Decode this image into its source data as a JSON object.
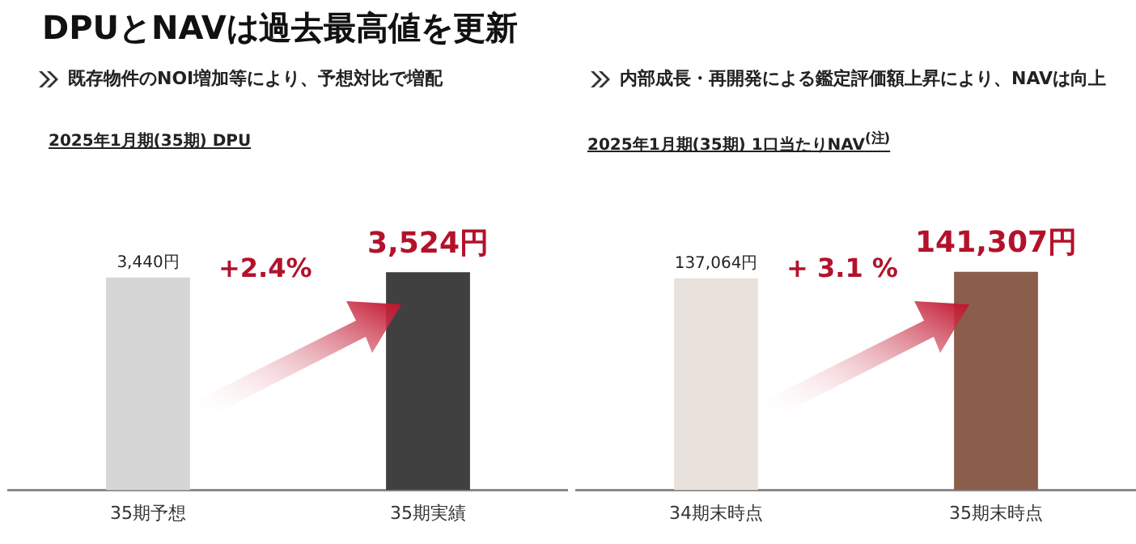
{
  "chart_data": [
    {
      "type": "bar",
      "title": "2025年1月期(35期) DPU",
      "subtitle": "既存物件のNOI増加等により、予想対比で増配",
      "annotations": [
        "DPUとNAVは過去最高値を更新",
        "+2.4%"
      ],
      "categories": [
        "35期予想",
        "35期実績"
      ],
      "values": [
        3440,
        3524
      ],
      "colors": [
        "#d6d6d6",
        "#404040"
      ],
      "value_labels": [
        "3,440円",
        "3,524円"
      ],
      "tick_labels": "x"
    },
    {
      "type": "bar",
      "title": "2025年1月期(35期) 1口当たりNAV$^{(注)}$",
      "subtitle": "内部成長・再開発による鑑定評価額上昇により、NAVは向上",
      "annotations": [
        "+ 3.1 %"
      ],
      "categories": [
        "34期末時点",
        "35期末時点"
      ],
      "values": [
        137064,
        141307
      ],
      "colors": [
        "#e9e1db",
        "#8b5e4c"
      ],
      "value_labels": [
        "137,064円",
        "141,307円"
      ],
      "tick_labels": "x"
    }
  ]
}
